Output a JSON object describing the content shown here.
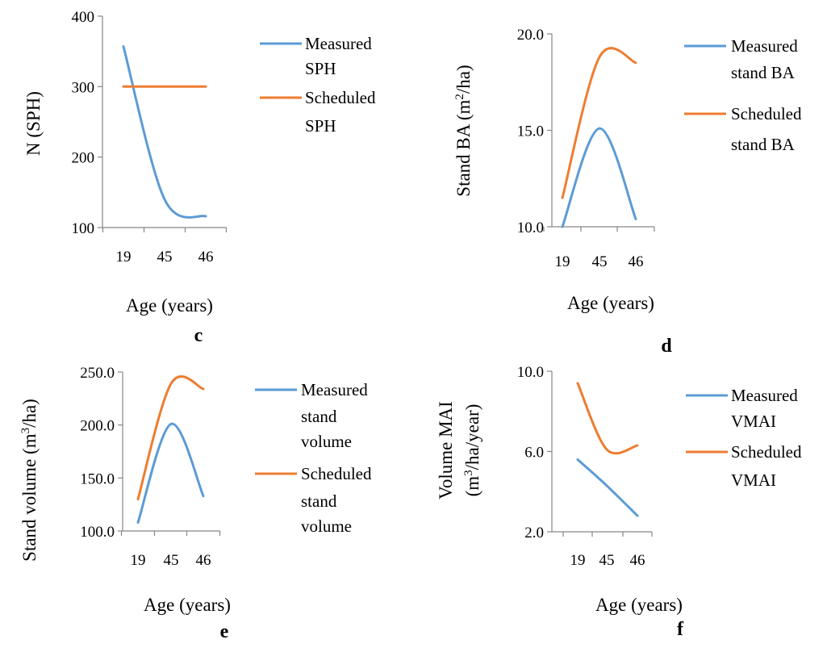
{
  "series_colors": {
    "measured": "#5b9bd5",
    "scheduled": "#ed7d31"
  },
  "chart_data": [
    {
      "type": "line",
      "panel_label": "",
      "x": [
        "19",
        "45",
        "46"
      ],
      "xlabel": "Age (years)",
      "ylabel": "N (SPH)",
      "ylabel_lines": [
        "N (SPH)"
      ],
      "ylim": [
        100,
        400
      ],
      "yticks": [
        "100",
        "200",
        "300",
        "400"
      ],
      "yticks_values": [
        100,
        200,
        300,
        400
      ],
      "grid": false,
      "legend_position": "right",
      "series": [
        {
          "name": "Measured SPH",
          "legend_lines": [
            "Measured",
            "SPH"
          ],
          "color": "#5b9bd5",
          "values": [
            357,
            140,
            116
          ]
        },
        {
          "name": "Scheduled SPH",
          "legend_lines": [
            "Scheduled",
            "SPH"
          ],
          "color": "#ed7d31",
          "values": [
            300,
            300,
            300
          ]
        }
      ]
    },
    {
      "type": "line",
      "panel_label": "",
      "x": [
        "19",
        "45",
        "46"
      ],
      "xlabel": "Age (years)",
      "ylabel": "Stand BA (m²/ha)",
      "ylabel_lines": [
        "Stand BA (m²/ha)"
      ],
      "ylim": [
        10,
        20
      ],
      "yticks": [
        "10.0",
        "15.0",
        "20.0"
      ],
      "yticks_values": [
        10,
        15,
        20
      ],
      "grid": false,
      "legend_position": "right",
      "series": [
        {
          "name": "Measured stand BA",
          "legend_lines": [
            "Measured",
            "stand BA"
          ],
          "color": "#5b9bd5",
          "values": [
            10.0,
            15.1,
            10.4
          ]
        },
        {
          "name": "Scheduled stand BA",
          "legend_lines": [
            "Scheduled",
            "stand BA"
          ],
          "color": "#ed7d31",
          "values": [
            11.5,
            18.8,
            18.5
          ]
        }
      ]
    },
    {
      "type": "line",
      "panel_label": "e",
      "x": [
        "19",
        "45",
        "46"
      ],
      "xlabel": "Age (years)",
      "ylabel": "Stand volume (m³/ha)",
      "ylabel_lines": [
        "Stand volume (m³/ha)"
      ],
      "ylim": [
        100,
        250
      ],
      "yticks": [
        "100.0",
        "150.0",
        "200.0",
        "250.0"
      ],
      "yticks_values": [
        100,
        150,
        200,
        250
      ],
      "grid": false,
      "legend_position": "right",
      "series": [
        {
          "name": "Measured stand volume",
          "legend_lines": [
            "Measured",
            "stand",
            "volume"
          ],
          "color": "#5b9bd5",
          "values": [
            108,
            201,
            133
          ]
        },
        {
          "name": "Scheduled stand volume",
          "legend_lines": [
            "Scheduled",
            "stand",
            "volume"
          ],
          "color": "#ed7d31",
          "values": [
            130,
            239,
            234
          ]
        }
      ]
    },
    {
      "type": "line",
      "panel_label": "f",
      "x": [
        "19",
        "45",
        "46"
      ],
      "xlabel": "Age (years)",
      "ylabel": "Volume MAI (m³/ha/year)",
      "ylabel_lines": [
        "Volume MAI",
        "(m³/ha/year)"
      ],
      "ylim": [
        2,
        10
      ],
      "yticks": [
        "2.0",
        "6.0",
        "10.0"
      ],
      "yticks_values": [
        2,
        6,
        10
      ],
      "grid": false,
      "legend_position": "right",
      "series": [
        {
          "name": "Measured VMAI",
          "legend_lines": [
            "Measured",
            "VMAI"
          ],
          "color": "#5b9bd5",
          "values": [
            5.6,
            4.3,
            2.8
          ]
        },
        {
          "name": "Scheduled VMAI",
          "legend_lines": [
            "Scheduled",
            "VMAI"
          ],
          "color": "#ed7d31",
          "values": [
            9.4,
            6.1,
            6.3
          ]
        }
      ]
    }
  ],
  "between_panel_labels": [
    "c",
    "d"
  ]
}
